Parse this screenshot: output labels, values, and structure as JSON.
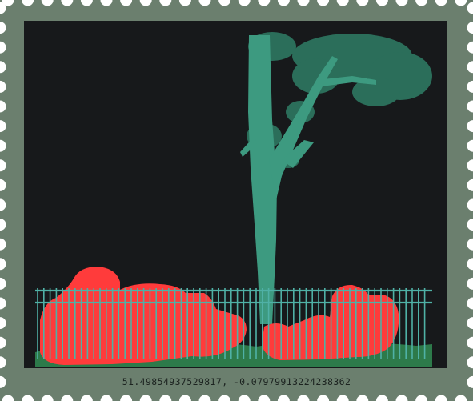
{
  "stamp": {
    "frame_color": "#6b7f6e",
    "image_bg": "#17191b",
    "tree_color": "#3d9a80",
    "fence_color": "#4fb1a6",
    "highlight_color": "#ff3b3b",
    "grass_color": "#2d7a4a"
  },
  "caption": {
    "coordinates": "51.49854937529817, -0.07979913224238362"
  }
}
